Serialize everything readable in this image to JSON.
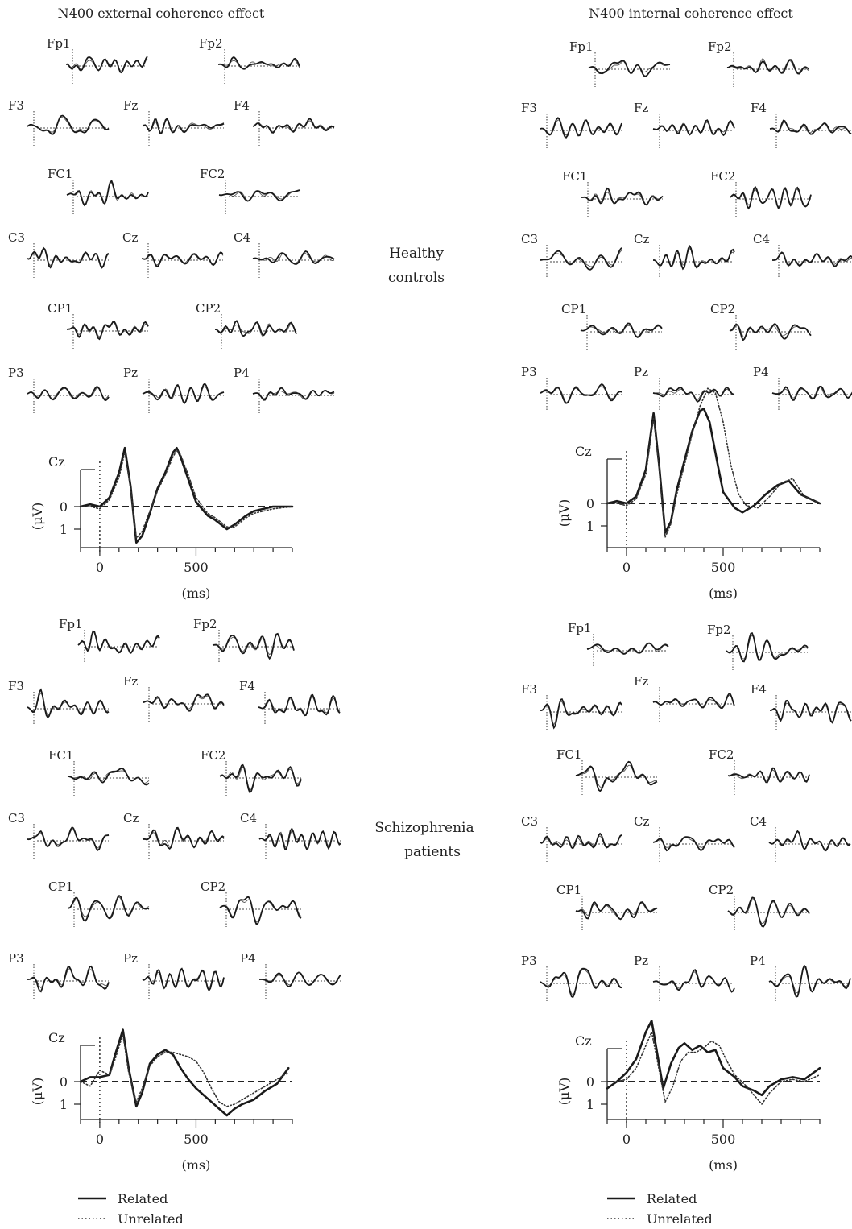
{
  "columns": [
    {
      "title": "N400 external coherence effect"
    },
    {
      "title": "N400 internal coherence effect"
    }
  ],
  "groups": [
    {
      "label_lines": [
        "Healthy",
        "controls"
      ]
    },
    {
      "label_lines": [
        "Schizophrenia",
        "patients"
      ]
    }
  ],
  "electrodes": [
    "Fp1",
    "Fp2",
    "F3",
    "Fz",
    "F4",
    "FC1",
    "FC2",
    "C3",
    "Cz",
    "C4",
    "CP1",
    "CP2",
    "P3",
    "Pz",
    "P4"
  ],
  "legend": {
    "related": "Related",
    "unrelated": "Unrelated"
  },
  "chart_data": [
    {
      "type": "line",
      "panel": "external-healthy-Cz",
      "title": "Cz",
      "xlabel": "(ms)",
      "ylabel": "(μV)",
      "xlim": [
        -100,
        1000
      ],
      "ylim": [
        -4.2,
        1.8
      ],
      "y_inverted_negative_up": true,
      "xticks": [
        0,
        500
      ],
      "yticks": [
        0,
        1
      ],
      "series": [
        {
          "name": "Related",
          "style": "solid",
          "x": [
            -100,
            -50,
            0,
            50,
            100,
            130,
            160,
            190,
            220,
            260,
            300,
            340,
            380,
            400,
            420,
            460,
            500,
            560,
            600,
            660,
            700,
            760,
            800,
            900,
            1000
          ],
          "y": [
            0,
            -0.1,
            0,
            -0.4,
            -1.5,
            -2.6,
            -0.9,
            1.6,
            1.3,
            0.3,
            -0.8,
            -1.5,
            -2.4,
            -2.6,
            -2.2,
            -1.2,
            -0.2,
            0.4,
            0.6,
            1.0,
            0.8,
            0.4,
            0.2,
            0,
            0
          ]
        },
        {
          "name": "Unrelated",
          "style": "dotted",
          "x": [
            -100,
            -50,
            0,
            50,
            100,
            130,
            160,
            190,
            220,
            260,
            300,
            340,
            380,
            400,
            420,
            460,
            500,
            560,
            600,
            660,
            700,
            760,
            800,
            900,
            1000
          ],
          "y": [
            0,
            0,
            0.1,
            -0.3,
            -1.3,
            -2.4,
            -0.8,
            1.4,
            1.1,
            0.2,
            -0.7,
            -1.4,
            -2.2,
            -2.5,
            -2.3,
            -1.4,
            -0.4,
            0.3,
            0.5,
            0.9,
            0.9,
            0.5,
            0.3,
            0.1,
            0
          ]
        }
      ]
    },
    {
      "type": "line",
      "panel": "internal-healthy-Cz",
      "title": "Cz",
      "xlabel": "(ms)",
      "ylabel": "(μV)",
      "xlim": [
        -100,
        1000
      ],
      "ylim": [
        -5.5,
        1.8
      ],
      "y_inverted_negative_up": true,
      "xticks": [
        0,
        500
      ],
      "yticks": [
        0,
        1
      ],
      "series": [
        {
          "name": "Related",
          "style": "solid",
          "x": [
            -100,
            -50,
            0,
            50,
            100,
            140,
            170,
            200,
            230,
            260,
            300,
            340,
            380,
            400,
            430,
            470,
            500,
            560,
            600,
            660,
            720,
            780,
            840,
            900,
            1000
          ],
          "y": [
            0,
            -0.1,
            0,
            -0.3,
            -1.5,
            -4.0,
            -1.6,
            1.3,
            0.8,
            -0.6,
            -1.9,
            -3.2,
            -4.1,
            -4.2,
            -3.6,
            -1.8,
            -0.5,
            0.2,
            0.4,
            0.1,
            -0.4,
            -0.8,
            -1.0,
            -0.4,
            0
          ]
        },
        {
          "name": "Unrelated",
          "style": "dotted",
          "x": [
            -100,
            -50,
            0,
            50,
            100,
            140,
            170,
            200,
            230,
            260,
            300,
            340,
            380,
            420,
            460,
            500,
            540,
            580,
            620,
            680,
            740,
            800,
            860,
            920,
            1000
          ],
          "y": [
            0,
            0,
            0.1,
            -0.2,
            -1.3,
            -3.8,
            -1.4,
            1.5,
            0.9,
            -0.4,
            -1.7,
            -3.1,
            -4.3,
            -5.1,
            -4.9,
            -3.6,
            -1.7,
            -0.4,
            0.1,
            0.2,
            -0.3,
            -0.9,
            -1.1,
            -0.3,
            0
          ]
        }
      ]
    },
    {
      "type": "line",
      "panel": "external-patients-Cz",
      "title": "Cz",
      "xlabel": "(ms)",
      "ylabel": "(μV)",
      "xlim": [
        -100,
        1000
      ],
      "ylim": [
        -3.2,
        1.8
      ],
      "y_inverted_negative_up": true,
      "xticks": [
        0,
        500
      ],
      "yticks": [
        0,
        1
      ],
      "series": [
        {
          "name": "Related",
          "style": "solid",
          "x": [
            -100,
            -50,
            0,
            50,
            80,
            120,
            150,
            190,
            220,
            260,
            300,
            340,
            380,
            420,
            460,
            500,
            540,
            580,
            620,
            660,
            700,
            740,
            800,
            860,
            920,
            980
          ],
          "y": [
            0,
            -0.2,
            -0.2,
            -0.3,
            -1.2,
            -2.3,
            -0.6,
            1.1,
            0.5,
            -0.8,
            -1.2,
            -1.4,
            -1.2,
            -0.6,
            -0.1,
            0.3,
            0.6,
            0.9,
            1.2,
            1.5,
            1.2,
            1.0,
            0.8,
            0.4,
            0.1,
            -0.6
          ]
        },
        {
          "name": "Unrelated",
          "style": "dotted",
          "x": [
            -100,
            -50,
            0,
            50,
            80,
            120,
            150,
            190,
            220,
            260,
            300,
            340,
            380,
            420,
            460,
            500,
            540,
            580,
            620,
            660,
            700,
            740,
            800,
            860,
            920,
            980
          ],
          "y": [
            0,
            0.2,
            -0.5,
            -0.3,
            -1.0,
            -2.1,
            -0.4,
            0.9,
            0.3,
            -0.7,
            -1.1,
            -1.3,
            -1.3,
            -1.2,
            -1.1,
            -0.9,
            -0.4,
            0.3,
            0.9,
            1.1,
            1.0,
            0.8,
            0.5,
            0.2,
            -0.1,
            -0.4
          ]
        }
      ]
    },
    {
      "type": "line",
      "panel": "internal-patients-Cz",
      "title": "Cz",
      "xlabel": "(ms)",
      "ylabel": "(μV)",
      "xlim": [
        -100,
        1000
      ],
      "ylim": [
        -4.2,
        1.8
      ],
      "y_inverted_negative_up": true,
      "xticks": [
        0,
        500
      ],
      "yticks": [
        0,
        1
      ],
      "series": [
        {
          "name": "Related",
          "style": "solid",
          "x": [
            -100,
            -50,
            0,
            50,
            100,
            130,
            160,
            190,
            230,
            270,
            300,
            340,
            380,
            420,
            460,
            500,
            560,
            600,
            660,
            700,
            740,
            800,
            860,
            920,
            1000
          ],
          "y": [
            0.3,
            0,
            -0.4,
            -1.0,
            -2.2,
            -2.7,
            -1.2,
            0.3,
            -0.8,
            -1.5,
            -1.7,
            -1.4,
            -1.6,
            -1.3,
            -1.4,
            -0.6,
            -0.2,
            0.2,
            0.4,
            0.6,
            0.2,
            -0.1,
            -0.2,
            -0.1,
            -0.6
          ]
        },
        {
          "name": "Unrelated",
          "style": "dotted",
          "x": [
            -100,
            -50,
            0,
            50,
            100,
            130,
            160,
            200,
            240,
            280,
            320,
            360,
            400,
            440,
            480,
            520,
            560,
            620,
            660,
            700,
            740,
            800,
            860,
            920,
            1000
          ],
          "y": [
            0,
            0,
            -0.1,
            -0.6,
            -1.6,
            -2.2,
            -0.9,
            0.9,
            0.2,
            -0.9,
            -1.3,
            -1.3,
            -1.5,
            -1.8,
            -1.6,
            -0.9,
            -0.3,
            0.2,
            0.6,
            1.0,
            0.5,
            0,
            -0.1,
            0,
            -0.3
          ]
        }
      ]
    }
  ]
}
